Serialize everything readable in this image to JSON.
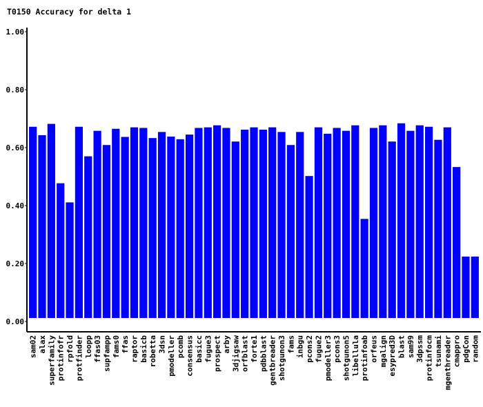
{
  "chart_data": {
    "type": "bar",
    "title": "T0150 Accuracy for delta 1",
    "xlabel": "",
    "ylabel": "",
    "ylim": [
      0,
      1.0
    ],
    "yticks": [
      "0.00",
      "0.20",
      "0.40",
      "0.60",
      "0.80",
      "1.00"
    ],
    "grid": false,
    "bar_color": "#0000ff",
    "categories": [
      "sam02",
      "alax",
      "superfamily",
      "protinfofr",
      "rpfold",
      "protfinder",
      "loopp",
      "ffas03",
      "supfampp",
      "fams0",
      "ffas",
      "raptor",
      "basicb",
      "robetta",
      "3dsn",
      "pmodeller",
      "pcomb",
      "consensus",
      "basicc",
      "fugue3",
      "prospect",
      "arby",
      "3djigsaw",
      "orfblast",
      "forte1",
      "pdbblast",
      "gentbreader",
      "shotgunon3",
      "fams",
      "inbgu",
      "pcons2",
      "fugue2",
      "pmodeller3",
      "pcons3",
      "shotgunon5",
      "libellula",
      "protinfoab",
      "orfeus",
      "mgalign",
      "esypred3D",
      "blast",
      "sam99",
      "3dpssm",
      "protinfocm",
      "tsunami",
      "mgenthreader",
      "cmappro",
      "pdgCon",
      "random"
    ],
    "values": [
      0.672,
      0.643,
      0.682,
      0.477,
      0.411,
      0.672,
      0.57,
      0.658,
      0.609,
      0.665,
      0.637,
      0.67,
      0.668,
      0.633,
      0.654,
      0.638,
      0.629,
      0.645,
      0.668,
      0.67,
      0.677,
      0.668,
      0.621,
      0.662,
      0.67,
      0.662,
      0.67,
      0.654,
      0.609,
      0.654,
      0.502,
      0.67,
      0.648,
      0.668,
      0.658,
      0.677,
      0.354,
      0.668,
      0.677,
      0.621,
      0.684,
      0.658,
      0.677,
      0.672,
      0.627,
      0.67,
      0.533,
      0.224,
      0.224
    ]
  }
}
